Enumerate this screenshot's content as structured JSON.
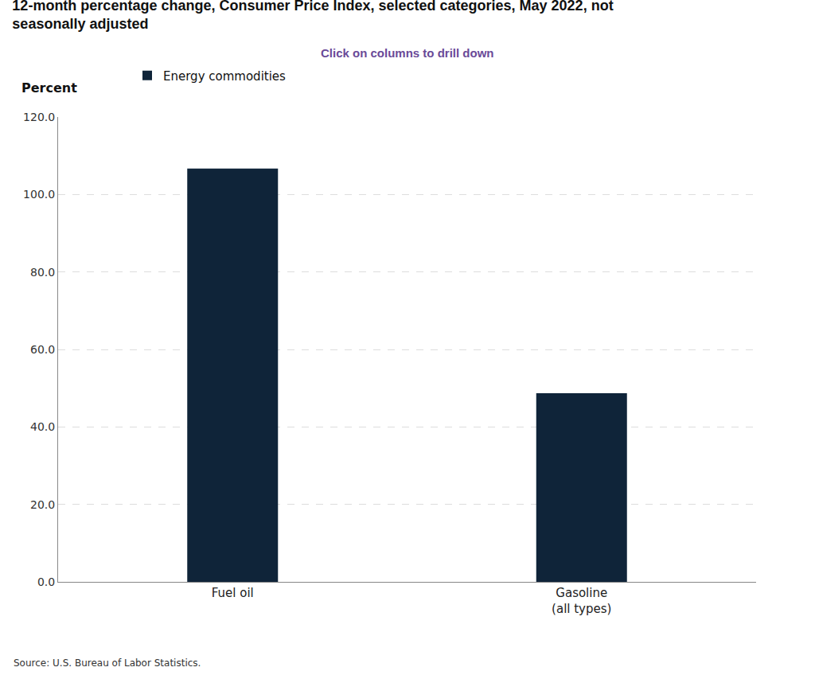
{
  "chart_data": {
    "type": "bar",
    "title": "12-month percentage change, Consumer Price Index, selected categories, May 2022, not seasonally adjusted",
    "subtitle": "Click on columns to drill down",
    "ylabel": "Percent",
    "source": "Source: U.S. Bureau of Labor Statistics.",
    "categories": [
      "Fuel oil",
      "Gasoline (all types)"
    ],
    "series": [
      {
        "name": "Energy commodities",
        "color": "#0f2439",
        "values": [
          106.7,
          48.7
        ]
      }
    ],
    "ylim": [
      0,
      120
    ],
    "yticks": [
      {
        "value": 0,
        "label": "0.0"
      },
      {
        "value": 20,
        "label": "20.0"
      },
      {
        "value": 40,
        "label": "40.0"
      },
      {
        "value": 60,
        "label": "60.0"
      },
      {
        "value": 80,
        "label": "80.0"
      },
      {
        "value": 100,
        "label": "100.0"
      },
      {
        "value": 120,
        "label": "120.0"
      }
    ],
    "grid": true,
    "legend": "top left"
  }
}
